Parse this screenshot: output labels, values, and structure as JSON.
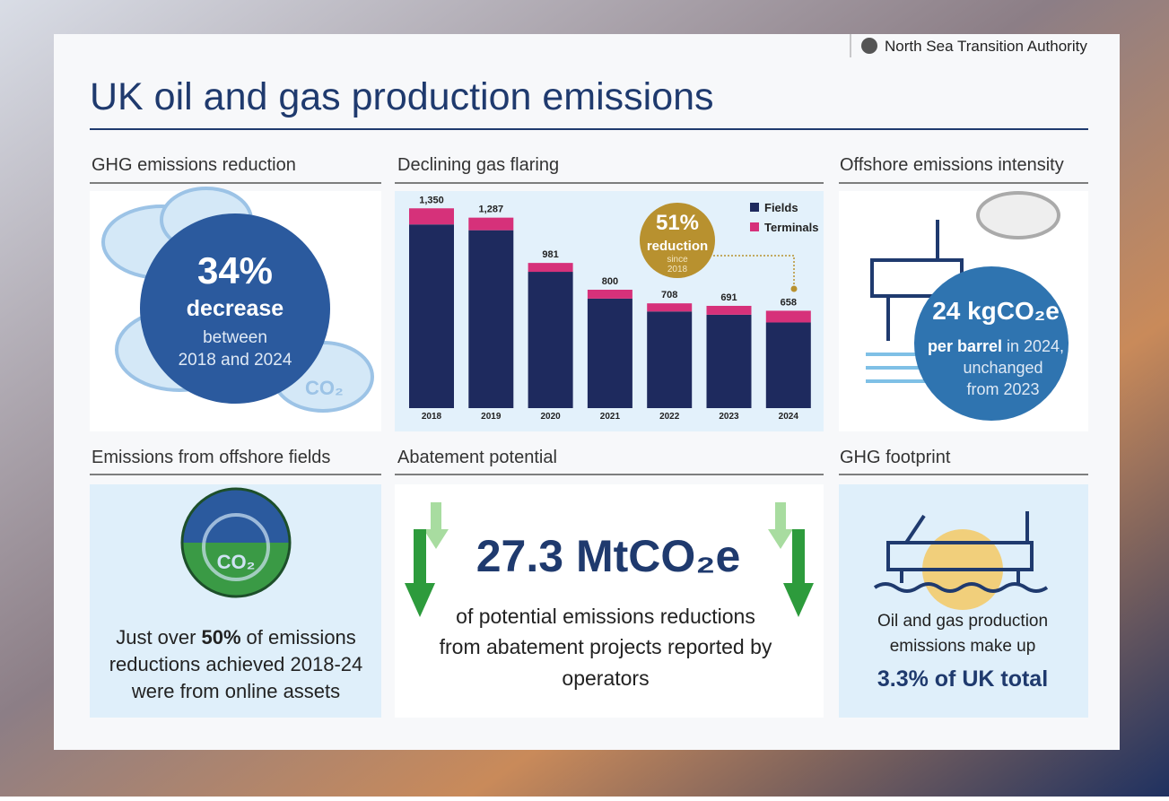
{
  "header": {
    "organization": "North Sea Transition Authority",
    "title": "UK oil and gas production emissions"
  },
  "panels": {
    "ghg_reduction": {
      "heading": "GHG emissions reduction",
      "value": "34%",
      "label": "decrease",
      "lines": [
        "between",
        "2018 and 2024"
      ],
      "icon_label": "CO₂"
    },
    "intensity": {
      "heading": "Offshore emissions intensity",
      "value": "24 kgCO₂e",
      "line1": [
        "per barrel",
        "in 2024,"
      ],
      "lines": [
        "unchanged",
        "from 2023"
      ]
    },
    "offshore_fields": {
      "heading": "Emissions from offshore fields",
      "icon_label": "CO₂",
      "line1": [
        "Just over",
        "50%",
        "of emissions"
      ],
      "lines": [
        "reductions achieved 2018-24",
        "were from online assets"
      ]
    },
    "abatement": {
      "heading": "Abatement potential",
      "value": "27.3 MtCO₂e",
      "lines": [
        "of potential emissions reductions",
        "from abatement projects reported by",
        "operators"
      ]
    },
    "footprint": {
      "heading": "GHG footprint",
      "lines": [
        "Oil and gas production",
        "emissions make up"
      ],
      "highlight": "3.3% of UK total"
    }
  },
  "chart_data": {
    "type": "stacked-bar",
    "title": "Declining gas flaring",
    "categories": [
      "2018",
      "2019",
      "2020",
      "2021",
      "2022",
      "2023",
      "2024"
    ],
    "series": [
      {
        "name": "Fields",
        "color": "#1e2a5e",
        "values": [
          1241,
          1202,
          921,
          740,
          653,
          631,
          579
        ]
      },
      {
        "name": "Terminals",
        "color": "#d6317a",
        "values": [
          109,
          85,
          60,
          60,
          55,
          60,
          79
        ]
      }
    ],
    "totals": [
      1350,
      1287,
      981,
      800,
      708,
      691,
      658
    ],
    "total_labels": [
      "1,350",
      "1,287",
      "981",
      "800",
      "708",
      "691",
      "658"
    ],
    "annotation": {
      "value": "51%",
      "label": "reduction",
      "note": [
        "since",
        "2018"
      ]
    },
    "ylim": [
      0,
      1400
    ],
    "legend": "top-right"
  }
}
